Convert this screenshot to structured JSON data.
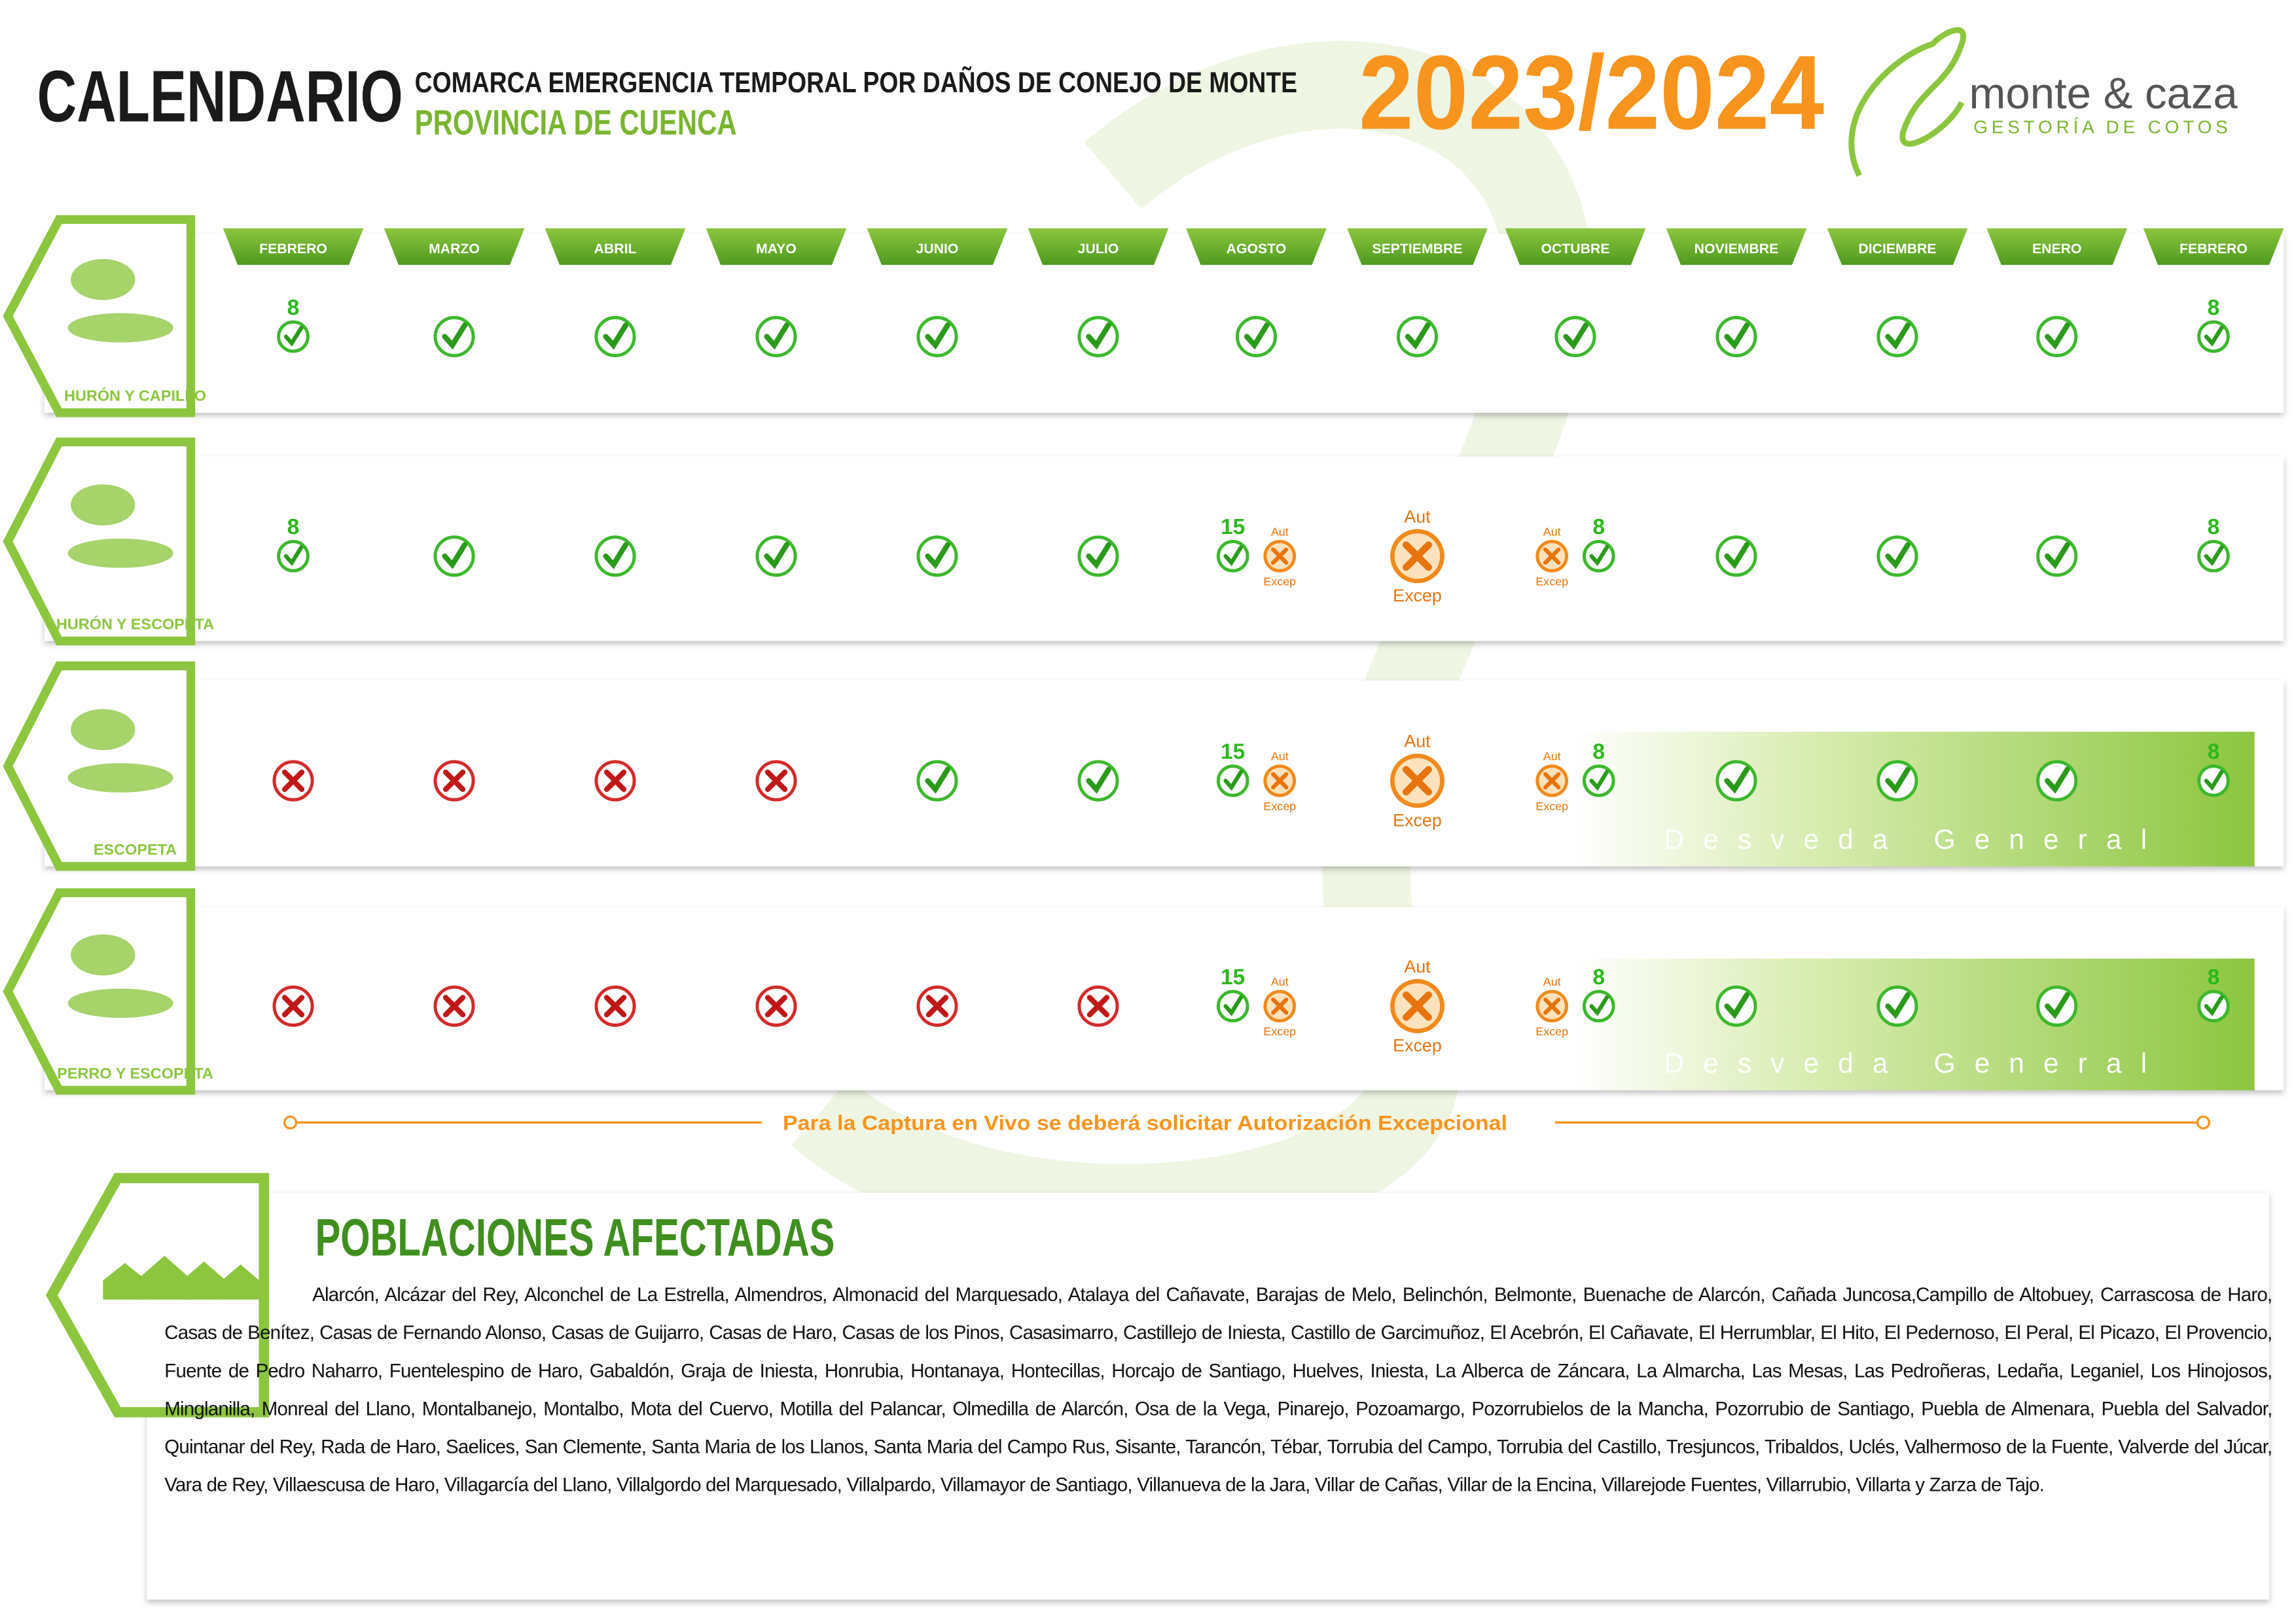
{
  "header": {
    "title": "CALENDARIO",
    "subtitle": "COMARCA EMERGENCIA TEMPORAL POR DAÑOS DE CONEJO DE MONTE",
    "province": "PROVINCIA DE CUENCA",
    "season": "2023/2024",
    "brand": "monte & caza",
    "brand_tagline": "GESTORÍA DE COTOS"
  },
  "months": [
    "FEBRERO",
    "MARZO",
    "ABRIL",
    "MAYO",
    "JUNIO",
    "JULIO",
    "AGOSTO",
    "SEPTIEMBRE",
    "OCTUBRE",
    "NOVIEMBRE",
    "DICIEMBRE",
    "ENERO",
    "FEBRERO"
  ],
  "rows": [
    {
      "label": "HURÓN Y CAPILLO",
      "cells": [
        [
          {
            "day": "8",
            "status": "ok"
          }
        ],
        [
          {
            "status": "ok"
          }
        ],
        [
          {
            "status": "ok"
          }
        ],
        [
          {
            "status": "ok"
          }
        ],
        [
          {
            "status": "ok"
          }
        ],
        [
          {
            "status": "ok"
          }
        ],
        [
          {
            "status": "ok"
          }
        ],
        [
          {
            "status": "ok"
          }
        ],
        [
          {
            "status": "ok"
          }
        ],
        [
          {
            "status": "ok"
          }
        ],
        [
          {
            "status": "ok"
          }
        ],
        [
          {
            "status": "ok"
          }
        ],
        [
          {
            "day": "8",
            "status": "ok"
          }
        ]
      ]
    },
    {
      "label": "HURÓN Y ESCOPETA",
      "cells": [
        [
          {
            "day": "8",
            "status": "ok"
          }
        ],
        [
          {
            "status": "ok"
          }
        ],
        [
          {
            "status": "ok"
          }
        ],
        [
          {
            "status": "ok"
          }
        ],
        [
          {
            "status": "ok"
          }
        ],
        [
          {
            "status": "ok"
          }
        ],
        [
          {
            "day": "15",
            "status": "ok"
          },
          {
            "status": "aut",
            "top": "Aut",
            "bottom": "Excep"
          }
        ],
        [
          {
            "status": "aut",
            "top": "Aut",
            "bottom": "Excep"
          }
        ],
        [
          {
            "status": "aut",
            "top": "Aut",
            "bottom": "Excep"
          },
          {
            "day": "8",
            "status": "ok"
          }
        ],
        [
          {
            "status": "ok"
          }
        ],
        [
          {
            "status": "ok"
          }
        ],
        [
          {
            "status": "ok"
          }
        ],
        [
          {
            "day": "8",
            "status": "ok"
          }
        ]
      ]
    },
    {
      "label": "ESCOPETA",
      "banner": "Desveda General",
      "cells": [
        [
          {
            "status": "no"
          }
        ],
        [
          {
            "status": "no"
          }
        ],
        [
          {
            "status": "no"
          }
        ],
        [
          {
            "status": "no"
          }
        ],
        [
          {
            "status": "ok"
          }
        ],
        [
          {
            "status": "ok"
          }
        ],
        [
          {
            "day": "15",
            "status": "ok"
          },
          {
            "status": "aut",
            "top": "Aut",
            "bottom": "Excep"
          }
        ],
        [
          {
            "status": "aut",
            "top": "Aut",
            "bottom": "Excep"
          }
        ],
        [
          {
            "status": "aut",
            "top": "Aut",
            "bottom": "Excep"
          },
          {
            "day": "8",
            "status": "ok"
          }
        ],
        [
          {
            "status": "ok"
          }
        ],
        [
          {
            "status": "ok"
          }
        ],
        [
          {
            "status": "ok"
          }
        ],
        [
          {
            "day": "8",
            "status": "ok"
          }
        ]
      ]
    },
    {
      "label": "PERRO Y ESCOPETA",
      "banner": "Desveda General",
      "cells": [
        [
          {
            "status": "no"
          }
        ],
        [
          {
            "status": "no"
          }
        ],
        [
          {
            "status": "no"
          }
        ],
        [
          {
            "status": "no"
          }
        ],
        [
          {
            "status": "no"
          }
        ],
        [
          {
            "status": "no"
          }
        ],
        [
          {
            "day": "15",
            "status": "ok"
          },
          {
            "status": "aut",
            "top": "Aut",
            "bottom": "Excep"
          }
        ],
        [
          {
            "status": "aut",
            "top": "Aut",
            "bottom": "Excep"
          }
        ],
        [
          {
            "status": "aut",
            "top": "Aut",
            "bottom": "Excep"
          },
          {
            "day": "8",
            "status": "ok"
          }
        ],
        [
          {
            "status": "ok"
          }
        ],
        [
          {
            "status": "ok"
          }
        ],
        [
          {
            "status": "ok"
          }
        ],
        [
          {
            "day": "8",
            "status": "ok"
          }
        ]
      ]
    }
  ],
  "note": "Para la  Captura en Vivo se deberá solicitar Autorización Excepcional",
  "towns": {
    "title": "POBLACIONES AFECTADAS",
    "text": "Alarcón, Alcázar del Rey, Alconchel de La Estrella, Almendros, Almonacid del Marquesado, Atalaya del Cañavate, Barajas de Melo, Belinchón, Belmonte, Buenache de Alarcón, Cañada Juncosa,Campillo de Altobuey, Carrascosa de Haro, Casas de Benítez, Casas de Fernando Alonso, Casas de Guijarro, Casas de Haro, Casas de los Pinos, Casasimarro, Castillejo de Iniesta,  Castillo de Garcimuñoz, El Acebrón, El Cañavate, El Herrumblar, El Hito, El Pedernoso, El Peral, El Picazo, El Provencio, Fuente de Pedro Naharro, Fuentelespino de Haro, Gabaldón, Graja de Iniesta, Honrubia, Hontanaya, Hontecillas, Horcajo de Santiago, Huelves, Iniesta, La Alberca de Záncara, La Almarcha, Las Mesas, Las Pedroñeras, Ledaña, Leganiel, Los Hinojosos, Minglanilla, Monreal del Llano, Montalbanejo, Montalbo, Mota del Cuervo, Motilla del Palancar, Olmedilla de Alarcón, Osa de la Vega, Pinarejo, Pozoamargo, Pozorrubielos de la Mancha, Pozorrubio de Santiago, Puebla de Almenara, Puebla del Salvador, Quintanar del Rey, Rada de Haro, Saelices, San Clemente, Santa Maria de los Llanos, Santa Maria del Campo Rus, Sisante, Tarancón, Tébar, Torrubia del Campo, Torrubia del Castillo, Tresjuncos, Tribaldos, Uclés, Valhermoso de la Fuente, Valverde del Júcar, Vara de Rey, Villaescusa de Haro, Villagarcía del Llano, Villalgordo del Marquesado, Villalpardo, Villamayor de Santiago, Villanueva de la Jara, Villar de Cañas, Villar de la Encina, Villarejode Fuentes, Villarrubio, Villarta y Zarza de Tajo."
  }
}
